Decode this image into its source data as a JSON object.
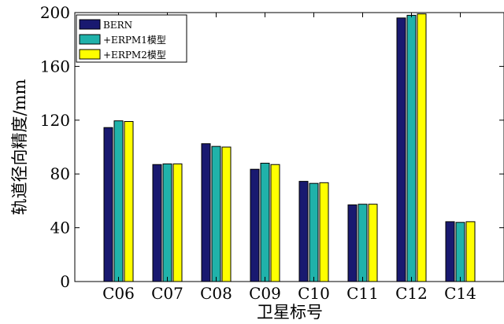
{
  "chart_data": {
    "type": "bar",
    "title": "",
    "xlabel": "卫星标号",
    "ylabel": "轨道径向精度/mm",
    "ylim": [
      0,
      200
    ],
    "yticks": [
      0,
      40,
      80,
      120,
      160,
      200
    ],
    "categories": [
      "C06",
      "C07",
      "C08",
      "C09",
      "C10",
      "C11",
      "C12",
      "C14"
    ],
    "series": [
      {
        "name": "BERN",
        "color": "#191970",
        "values": [
          114.5,
          87,
          102.5,
          83.5,
          74.5,
          57,
          196,
          44.5
        ]
      },
      {
        "name": "+ERPM1模型",
        "color": "#20b2aa",
        "values": [
          119.5,
          87.5,
          100.5,
          88,
          73,
          57.5,
          198,
          44
        ]
      },
      {
        "name": "+ERPM2模型",
        "color": "#ffff00",
        "values": [
          119,
          87.5,
          100,
          87,
          73.5,
          57.5,
          199,
          44.5
        ]
      }
    ],
    "grid": false,
    "legend_position": "top-left"
  }
}
